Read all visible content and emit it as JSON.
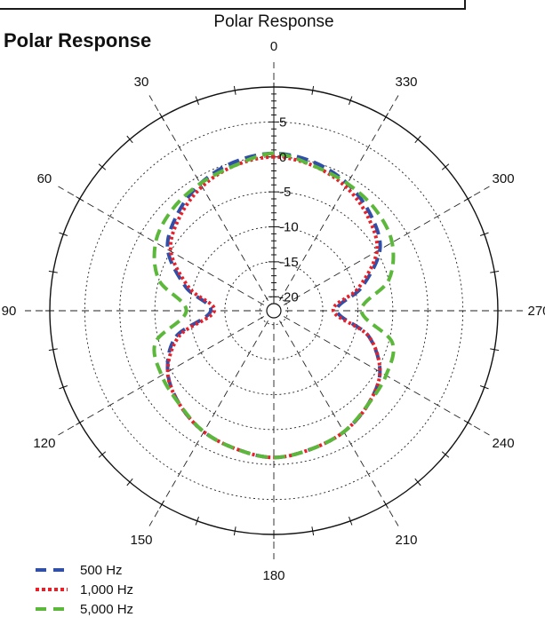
{
  "heading": "Polar Response",
  "chart_data": {
    "type": "polar-line",
    "title": "Polar Response",
    "angle_unit": "degrees",
    "angle_direction": "counterclockwise",
    "angle_zero": "top",
    "angle_ticks": [
      "0",
      "30",
      "60",
      "90",
      "120",
      "150",
      "180",
      "210",
      "240",
      "270",
      "300",
      "330"
    ],
    "radial_unit": "dB",
    "radial_range": [
      -22,
      10
    ],
    "radial_ticks": [
      "5",
      "0",
      "-5",
      "-10",
      "-15",
      "-20"
    ],
    "grid": true,
    "legend_position": "bottom-left",
    "series": [
      {
        "name": "500 Hz",
        "color": "#2f4fa8",
        "dash": "long-dash",
        "angles": [
          0,
          15,
          30,
          45,
          60,
          75,
          90,
          105,
          120,
          135,
          150,
          165,
          180,
          195,
          210,
          225,
          240,
          255,
          270,
          285,
          300,
          315,
          330,
          345
        ],
        "values": [
          0.5,
          0,
          -1,
          -2.5,
          -4.5,
          -9,
          -13,
          -7.5,
          -4.5,
          -3,
          -2,
          -1.5,
          -1,
          -1.5,
          -2,
          -3,
          -4.5,
          -8,
          -13,
          -9,
          -4.5,
          -2.5,
          -1,
          0
        ]
      },
      {
        "name": "1,000 Hz",
        "color": "#e8202a",
        "dash": "dotted",
        "angles": [
          0,
          15,
          30,
          45,
          60,
          75,
          90,
          105,
          120,
          135,
          150,
          165,
          180,
          195,
          210,
          225,
          240,
          255,
          270,
          285,
          300,
          315,
          330,
          345
        ],
        "values": [
          0,
          -0.5,
          -1.5,
          -3,
          -5,
          -9.5,
          -13.5,
          -8,
          -4.5,
          -3,
          -2,
          -1.5,
          -1,
          -1.5,
          -2,
          -3,
          -4.5,
          -8,
          -13.5,
          -9.5,
          -5,
          -3,
          -1.5,
          -0.5
        ]
      },
      {
        "name": "5,000 Hz",
        "color": "#5cb83a",
        "dash": "long-dash",
        "angles": [
          0,
          15,
          30,
          45,
          60,
          75,
          90,
          105,
          120,
          135,
          150,
          165,
          180,
          195,
          210,
          225,
          240,
          255,
          270,
          285,
          300,
          315,
          330,
          345
        ],
        "values": [
          0.5,
          -0.5,
          -1,
          -1.5,
          -2.5,
          -5,
          -9.5,
          -4.5,
          -3.5,
          -3,
          -2,
          -1.5,
          -1,
          -1.5,
          -2,
          -3,
          -3.5,
          -4.5,
          -9.5,
          -5,
          -2.5,
          -1.5,
          -1,
          -0.5
        ]
      }
    ]
  }
}
